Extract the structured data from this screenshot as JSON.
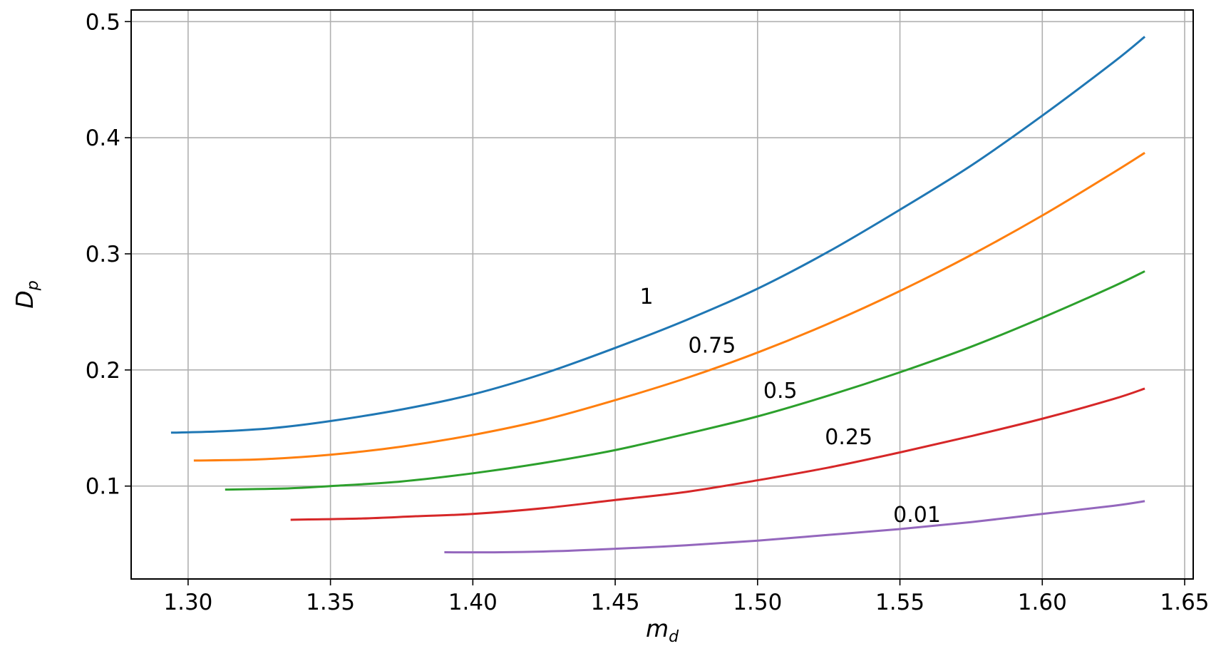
{
  "chart_data": {
    "type": "line",
    "xlabel": "m",
    "xlabel_sub": "d",
    "ylabel": "D",
    "ylabel_sub": "p",
    "xlim": [
      1.28,
      1.653
    ],
    "ylim": [
      0.02,
      0.51
    ],
    "xticks": [
      1.3,
      1.35,
      1.4,
      1.45,
      1.5,
      1.55,
      1.6,
      1.65
    ],
    "xtick_labels": [
      "1.30",
      "1.35",
      "1.40",
      "1.45",
      "1.50",
      "1.55",
      "1.60",
      "1.65"
    ],
    "yticks": [
      0.1,
      0.2,
      0.3,
      0.4,
      0.5
    ],
    "ytick_labels": [
      "0.1",
      "0.2",
      "0.3",
      "0.4",
      "0.5"
    ],
    "grid": true,
    "series": [
      {
        "label": "1",
        "color": "#1f77b4",
        "x": [
          1.294,
          1.31,
          1.33,
          1.35,
          1.375,
          1.4,
          1.425,
          1.45,
          1.475,
          1.5,
          1.525,
          1.55,
          1.575,
          1.6,
          1.625,
          1.636
        ],
        "y": [
          0.146,
          0.147,
          0.15,
          0.156,
          0.166,
          0.179,
          0.197,
          0.219,
          0.243,
          0.27,
          0.302,
          0.338,
          0.376,
          0.419,
          0.465,
          0.487
        ],
        "label_at": [
          1.461,
          0.257
        ]
      },
      {
        "label": "0.75",
        "color": "#ff7f0e",
        "x": [
          1.302,
          1.325,
          1.35,
          1.375,
          1.4,
          1.425,
          1.45,
          1.475,
          1.5,
          1.525,
          1.55,
          1.575,
          1.6,
          1.625,
          1.636
        ],
        "y": [
          0.122,
          0.123,
          0.127,
          0.134,
          0.144,
          0.157,
          0.174,
          0.193,
          0.215,
          0.24,
          0.268,
          0.299,
          0.333,
          0.37,
          0.387
        ],
        "label_at": [
          1.484,
          0.215
        ]
      },
      {
        "label": "0.5",
        "color": "#2ca02c",
        "x": [
          1.313,
          1.335,
          1.35,
          1.375,
          1.4,
          1.425,
          1.45,
          1.475,
          1.5,
          1.525,
          1.55,
          1.575,
          1.6,
          1.625,
          1.636
        ],
        "y": [
          0.097,
          0.098,
          0.1,
          0.104,
          0.111,
          0.12,
          0.131,
          0.145,
          0.16,
          0.178,
          0.198,
          0.22,
          0.245,
          0.272,
          0.285
        ],
        "label_at": [
          1.508,
          0.176
        ]
      },
      {
        "label": "0.25",
        "color": "#d62728",
        "x": [
          1.336,
          1.36,
          1.38,
          1.4,
          1.425,
          1.45,
          1.475,
          1.5,
          1.525,
          1.55,
          1.575,
          1.6,
          1.625,
          1.636
        ],
        "y": [
          0.071,
          0.072,
          0.074,
          0.076,
          0.081,
          0.088,
          0.095,
          0.105,
          0.116,
          0.129,
          0.143,
          0.158,
          0.175,
          0.184
        ],
        "label_at": [
          1.532,
          0.136
        ]
      },
      {
        "label": "0.01",
        "color": "#9467bd",
        "x": [
          1.39,
          1.41,
          1.43,
          1.45,
          1.475,
          1.5,
          1.525,
          1.55,
          1.575,
          1.6,
          1.625,
          1.636
        ],
        "y": [
          0.043,
          0.043,
          0.044,
          0.046,
          0.049,
          0.053,
          0.058,
          0.063,
          0.069,
          0.076,
          0.083,
          0.087
        ],
        "label_at": [
          1.556,
          0.069
        ]
      }
    ]
  }
}
